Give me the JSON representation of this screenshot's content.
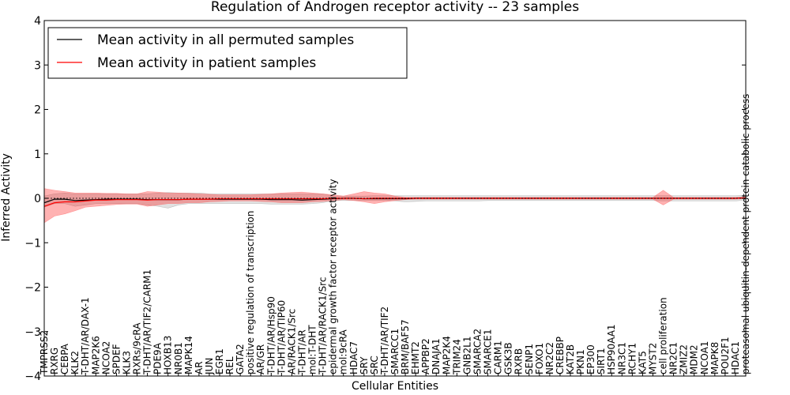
{
  "chart_data": {
    "type": "line",
    "title": "Regulation of Androgen receptor activity -- 23 samples",
    "xlabel": "Cellular Entities",
    "ylabel": "Inferred Activity",
    "ylim": [
      -4,
      4
    ],
    "yticks": [
      -4,
      -3,
      -2,
      -1,
      0,
      1,
      2,
      3,
      4
    ],
    "ytick_labels": [
      "−4",
      "−3",
      "−2",
      "−1",
      "0",
      "1",
      "2",
      "3",
      "4"
    ],
    "legend_position": "top-left",
    "categories": [
      "TMPRSS2",
      "RXRG",
      "CEBPA",
      "KLK2",
      "T-DHT/AR/DAX-1",
      "MAP2K6",
      "NCOA2",
      "SPDEF",
      "KLK3",
      "RXRs/9cRA",
      "T-DHT/AR/TIF2/CARM1",
      "PDE9A",
      "HOXB13",
      "NR0B1",
      "MAPK14",
      "AR",
      "JUN",
      "EGR1",
      "REL",
      "GATA2",
      "positive regulation of transcription",
      "AR/GR",
      "T-DHT/AR/Hsp90",
      "T-DHT/AR/TIP60",
      "AR/RACK1/Src",
      "T-DHT/AR",
      "mol:T-DHT",
      "T-DHT/AR/RACK1/Src",
      "epidermal growth factor receptor activity",
      "mol:9cRA",
      "HDAC7",
      "SRY",
      "SRC",
      "T-DHT/AR/TIF2",
      "SMARCC1",
      "BRM/BAF57",
      "EHMT2",
      "APPBP2",
      "DNAJA1",
      "MAP2K4",
      "TRIM24",
      "GNB2L1",
      "SMARCA2",
      "SMARCE1",
      "CARM1",
      "GSK3B",
      "RXRB",
      "SENP1",
      "FOXO1",
      "NR2C2",
      "CREBBP",
      "KAT2B",
      "PKN1",
      "EP300",
      "SIRT1",
      "HSP90AA1",
      "NR3C1",
      "RCHY1",
      "KAT5",
      "MYST2",
      "cell proliferation",
      "NR2C1",
      "ZMIZ2",
      "MDM2",
      "NCOA1",
      "MAPK8",
      "POU2F1",
      "HDAC1",
      "proteasomal ubiquitin-dependent protein catabolic process"
    ],
    "series": [
      {
        "name": "Mean activity in all permuted samples",
        "color": "#000000",
        "values": [
          -0.1,
          -0.02,
          -0.02,
          -0.05,
          -0.04,
          -0.03,
          -0.02,
          -0.02,
          -0.02,
          -0.02,
          -0.03,
          -0.03,
          -0.03,
          -0.03,
          -0.02,
          -0.02,
          -0.02,
          -0.02,
          -0.02,
          -0.02,
          -0.02,
          -0.02,
          -0.03,
          -0.03,
          -0.03,
          -0.04,
          -0.03,
          -0.02,
          -0.01,
          0.0,
          0.0,
          -0.01,
          -0.01,
          -0.01,
          -0.01,
          -0.01,
          0.0,
          0.0,
          0.0,
          0.0,
          0.0,
          0.0,
          0.0,
          0.0,
          0.0,
          0.0,
          0.0,
          0.0,
          0.0,
          0.0,
          0.0,
          0.0,
          0.0,
          0.0,
          0.0,
          0.0,
          0.0,
          0.0,
          0.0,
          0.0,
          0.0,
          0.0,
          0.0,
          0.0,
          0.0,
          0.0,
          0.0,
          0.0,
          0.01
        ],
        "band_low": [
          -0.2,
          -0.12,
          -0.12,
          -0.18,
          -0.15,
          -0.12,
          -0.12,
          -0.12,
          -0.12,
          -0.12,
          -0.15,
          -0.18,
          -0.22,
          -0.15,
          -0.12,
          -0.12,
          -0.12,
          -0.12,
          -0.12,
          -0.12,
          -0.12,
          -0.12,
          -0.13,
          -0.13,
          -0.13,
          -0.13,
          -0.12,
          -0.1,
          -0.05,
          -0.05,
          -0.05,
          -0.05,
          -0.05,
          -0.05,
          -0.06,
          -0.08,
          -0.07,
          -0.06,
          -0.06,
          -0.06,
          -0.06,
          -0.06,
          -0.06,
          -0.05,
          -0.05,
          -0.05,
          -0.05,
          -0.05,
          -0.05,
          -0.05,
          -0.05,
          -0.05,
          -0.05,
          -0.05,
          -0.05,
          -0.05,
          -0.05,
          -0.05,
          -0.05,
          -0.05,
          -0.06,
          -0.06,
          -0.06,
          -0.06,
          -0.06,
          -0.06,
          -0.06,
          -0.06,
          -0.04
        ],
        "band_high": [
          0.05,
          0.1,
          0.12,
          0.1,
          0.1,
          0.1,
          0.1,
          0.1,
          0.1,
          0.1,
          0.1,
          0.12,
          0.13,
          0.12,
          0.12,
          0.12,
          0.1,
          0.1,
          0.1,
          0.1,
          0.1,
          0.1,
          0.1,
          0.1,
          0.1,
          0.1,
          0.1,
          0.1,
          0.05,
          0.05,
          0.05,
          0.05,
          0.06,
          0.06,
          0.06,
          0.06,
          0.06,
          0.06,
          0.06,
          0.06,
          0.06,
          0.06,
          0.06,
          0.06,
          0.06,
          0.06,
          0.06,
          0.06,
          0.06,
          0.06,
          0.06,
          0.06,
          0.06,
          0.06,
          0.06,
          0.06,
          0.06,
          0.06,
          0.06,
          0.06,
          0.06,
          0.06,
          0.06,
          0.06,
          0.06,
          0.06,
          0.06,
          0.06,
          0.07
        ]
      },
      {
        "name": "Mean activity in patient samples",
        "color": "#ff0000",
        "values": [
          -0.18,
          -0.1,
          -0.08,
          -0.08,
          -0.06,
          -0.04,
          -0.04,
          -0.03,
          -0.03,
          -0.03,
          -0.04,
          -0.03,
          -0.03,
          -0.03,
          -0.02,
          -0.02,
          -0.02,
          -0.01,
          -0.01,
          -0.01,
          -0.01,
          -0.01,
          -0.01,
          -0.01,
          -0.01,
          -0.01,
          -0.01,
          -0.01,
          0.0,
          0.0,
          0.0,
          -0.01,
          0.0,
          0.0,
          0.0,
          0.0,
          0.0,
          0.0,
          0.0,
          0.0,
          0.0,
          0.0,
          0.0,
          0.0,
          0.0,
          0.0,
          0.0,
          0.0,
          0.0,
          0.0,
          0.0,
          0.0,
          0.0,
          0.0,
          0.0,
          0.0,
          0.0,
          0.0,
          0.0,
          0.0,
          0.0,
          0.0,
          0.0,
          0.0,
          0.0,
          0.0,
          0.0,
          0.0,
          0.01
        ],
        "band_low": [
          -0.55,
          -0.4,
          -0.35,
          -0.28,
          -0.2,
          -0.18,
          -0.16,
          -0.14,
          -0.13,
          -0.13,
          -0.18,
          -0.15,
          -0.12,
          -0.12,
          -0.1,
          -0.1,
          -0.08,
          -0.07,
          -0.06,
          -0.06,
          -0.06,
          -0.07,
          -0.08,
          -0.1,
          -0.1,
          -0.1,
          -0.08,
          -0.07,
          -0.05,
          -0.03,
          -0.05,
          -0.08,
          -0.12,
          -0.08,
          -0.05,
          -0.03,
          -0.02,
          -0.02,
          -0.02,
          -0.02,
          -0.02,
          -0.02,
          -0.02,
          -0.02,
          -0.02,
          -0.02,
          -0.02,
          -0.02,
          -0.02,
          -0.02,
          -0.02,
          -0.02,
          -0.02,
          -0.02,
          -0.02,
          -0.02,
          -0.02,
          -0.02,
          -0.02,
          -0.02,
          -0.15,
          -0.02,
          -0.02,
          -0.02,
          -0.02,
          -0.02,
          -0.02,
          -0.02,
          -0.01
        ],
        "band_high": [
          0.22,
          0.18,
          0.15,
          0.12,
          0.12,
          0.12,
          0.11,
          0.11,
          0.1,
          0.1,
          0.15,
          0.14,
          0.12,
          0.12,
          0.11,
          0.1,
          0.09,
          0.08,
          0.08,
          0.08,
          0.08,
          0.09,
          0.1,
          0.12,
          0.13,
          0.14,
          0.12,
          0.1,
          0.08,
          0.05,
          0.1,
          0.15,
          0.12,
          0.1,
          0.05,
          0.02,
          0.02,
          0.02,
          0.02,
          0.02,
          0.02,
          0.02,
          0.02,
          0.02,
          0.02,
          0.02,
          0.02,
          0.02,
          0.02,
          0.02,
          0.02,
          0.02,
          0.02,
          0.02,
          0.02,
          0.02,
          0.02,
          0.02,
          0.02,
          0.02,
          0.18,
          0.02,
          0.02,
          0.02,
          0.02,
          0.02,
          0.02,
          0.02,
          0.03
        ]
      }
    ]
  }
}
